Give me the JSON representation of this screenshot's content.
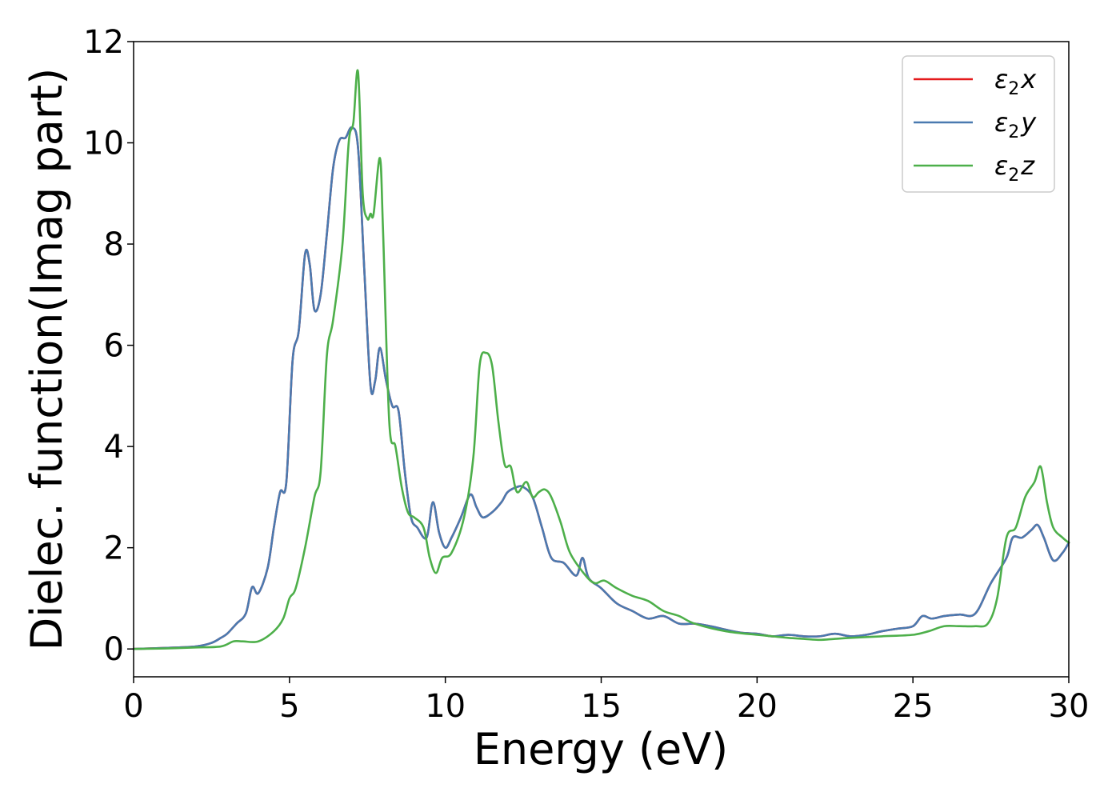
{
  "chart_data": {
    "type": "line",
    "xlabel": "Energy (eV)",
    "ylabel": "Dielec. function(Imag part)",
    "xlim": [
      0,
      30
    ],
    "ylim": [
      -0.55,
      12
    ],
    "xticks": [
      0,
      5,
      10,
      15,
      20,
      25,
      30
    ],
    "xtick_labels": [
      "0",
      "5",
      "10",
      "15",
      "20",
      "25",
      "30"
    ],
    "yticks": [
      0,
      2,
      4,
      6,
      8,
      10,
      12
    ],
    "ytick_labels": [
      "0",
      "2",
      "4",
      "6",
      "8",
      "10",
      "12"
    ],
    "grid": false,
    "legend_position": "top-right",
    "series": [
      {
        "name": "ε2x",
        "legend_base": "ε",
        "legend_sub": "2",
        "legend_var": "x",
        "color": "#e41a1c",
        "x": [
          0,
          1,
          2,
          2.5,
          2.8,
          3,
          3.3,
          3.6,
          3.8,
          4.0,
          4.3,
          4.5,
          4.7,
          4.9,
          5.1,
          5.3,
          5.5,
          5.65,
          5.8,
          6.0,
          6.2,
          6.4,
          6.6,
          6.8,
          7.0,
          7.2,
          7.4,
          7.6,
          7.75,
          7.9,
          8.1,
          8.3,
          8.5,
          8.7,
          8.9,
          9.1,
          9.4,
          9.6,
          9.8,
          10.0,
          10.2,
          10.5,
          10.8,
          11.0,
          11.2,
          11.5,
          11.8,
          12.0,
          12.3,
          12.5,
          12.8,
          13.1,
          13.4,
          13.8,
          14.2,
          14.4,
          14.6,
          15.0,
          15.5,
          16,
          16.5,
          17,
          17.5,
          18,
          18.5,
          19,
          19.5,
          20,
          20.5,
          21,
          21.5,
          22,
          22.5,
          23,
          23.5,
          24,
          24.5,
          25,
          25.3,
          25.6,
          26,
          26.5,
          27,
          27.5,
          28,
          28.2,
          28.5,
          28.8,
          29.0,
          29.2,
          29.5,
          29.8,
          30
        ],
        "values": [
          0,
          0.02,
          0.05,
          0.12,
          0.22,
          0.3,
          0.5,
          0.7,
          1.22,
          1.1,
          1.6,
          2.4,
          3.1,
          3.3,
          5.7,
          6.3,
          7.8,
          7.6,
          6.7,
          7.0,
          8.2,
          9.5,
          10.05,
          10.1,
          10.3,
          9.9,
          7.5,
          5.2,
          5.3,
          5.95,
          5.3,
          4.8,
          4.7,
          3.5,
          2.6,
          2.4,
          2.2,
          2.9,
          2.3,
          2.0,
          2.2,
          2.6,
          3.05,
          2.8,
          2.6,
          2.7,
          2.9,
          3.1,
          3.2,
          3.2,
          3.0,
          2.4,
          1.8,
          1.7,
          1.45,
          1.8,
          1.4,
          1.2,
          0.9,
          0.75,
          0.6,
          0.65,
          0.5,
          0.5,
          0.45,
          0.38,
          0.32,
          0.3,
          0.25,
          0.28,
          0.25,
          0.25,
          0.3,
          0.25,
          0.28,
          0.35,
          0.4,
          0.45,
          0.65,
          0.6,
          0.65,
          0.68,
          0.7,
          1.3,
          1.8,
          2.2,
          2.2,
          2.35,
          2.45,
          2.2,
          1.75,
          1.9,
          2.1
        ]
      },
      {
        "name": "ε2y",
        "legend_base": "ε",
        "legend_sub": "2",
        "legend_var": "y",
        "color": "#4a7ab0",
        "x": [
          0,
          1,
          2,
          2.5,
          2.8,
          3,
          3.3,
          3.6,
          3.8,
          4.0,
          4.3,
          4.5,
          4.7,
          4.9,
          5.1,
          5.3,
          5.5,
          5.65,
          5.8,
          6.0,
          6.2,
          6.4,
          6.6,
          6.8,
          7.0,
          7.2,
          7.4,
          7.6,
          7.75,
          7.9,
          8.1,
          8.3,
          8.5,
          8.7,
          8.9,
          9.1,
          9.4,
          9.6,
          9.8,
          10.0,
          10.2,
          10.5,
          10.8,
          11.0,
          11.2,
          11.5,
          11.8,
          12.0,
          12.3,
          12.5,
          12.8,
          13.1,
          13.4,
          13.8,
          14.2,
          14.4,
          14.6,
          15.0,
          15.5,
          16,
          16.5,
          17,
          17.5,
          18,
          18.5,
          19,
          19.5,
          20,
          20.5,
          21,
          21.5,
          22,
          22.5,
          23,
          23.5,
          24,
          24.5,
          25,
          25.3,
          25.6,
          26,
          26.5,
          27,
          27.5,
          28,
          28.2,
          28.5,
          28.8,
          29.0,
          29.2,
          29.5,
          29.8,
          30
        ],
        "values": [
          0,
          0.02,
          0.05,
          0.12,
          0.22,
          0.3,
          0.5,
          0.7,
          1.22,
          1.1,
          1.6,
          2.4,
          3.1,
          3.3,
          5.7,
          6.3,
          7.8,
          7.6,
          6.7,
          7.0,
          8.2,
          9.5,
          10.05,
          10.1,
          10.3,
          9.9,
          7.5,
          5.2,
          5.3,
          5.95,
          5.3,
          4.8,
          4.7,
          3.5,
          2.6,
          2.4,
          2.2,
          2.9,
          2.3,
          2.0,
          2.2,
          2.6,
          3.05,
          2.8,
          2.6,
          2.7,
          2.9,
          3.1,
          3.2,
          3.2,
          3.0,
          2.4,
          1.8,
          1.7,
          1.45,
          1.8,
          1.4,
          1.2,
          0.9,
          0.75,
          0.6,
          0.65,
          0.5,
          0.5,
          0.45,
          0.38,
          0.32,
          0.3,
          0.25,
          0.28,
          0.25,
          0.25,
          0.3,
          0.25,
          0.28,
          0.35,
          0.4,
          0.45,
          0.65,
          0.6,
          0.65,
          0.68,
          0.7,
          1.3,
          1.8,
          2.2,
          2.2,
          2.35,
          2.45,
          2.2,
          1.75,
          1.9,
          2.1
        ]
      },
      {
        "name": "ε2z",
        "legend_base": "ε",
        "legend_sub": "2",
        "legend_var": "z",
        "color": "#4daf4a",
        "x": [
          0,
          1,
          2,
          2.8,
          3.2,
          3.5,
          4.0,
          4.5,
          4.8,
          5.0,
          5.2,
          5.5,
          5.8,
          6.0,
          6.2,
          6.4,
          6.7,
          6.9,
          7.05,
          7.2,
          7.35,
          7.5,
          7.6,
          7.7,
          7.9,
          8.0,
          8.2,
          8.4,
          8.6,
          8.8,
          9.0,
          9.3,
          9.5,
          9.7,
          9.9,
          10.2,
          10.6,
          10.9,
          11.1,
          11.3,
          11.5,
          11.7,
          11.9,
          12.1,
          12.3,
          12.6,
          12.8,
          13.0,
          13.2,
          13.4,
          13.7,
          14.0,
          14.5,
          14.8,
          15.1,
          15.5,
          16,
          16.5,
          17,
          17.5,
          18,
          19,
          20,
          20.5,
          21,
          21.5,
          22,
          22.5,
          23,
          24,
          25,
          25.5,
          26,
          26.5,
          27,
          27.4,
          27.7,
          28.0,
          28.3,
          28.6,
          28.9,
          29.1,
          29.3,
          29.5,
          29.8,
          30
        ],
        "values": [
          0,
          0.01,
          0.03,
          0.05,
          0.15,
          0.15,
          0.15,
          0.35,
          0.6,
          1.0,
          1.2,
          2.0,
          3.0,
          3.5,
          5.8,
          6.5,
          8.0,
          10.0,
          10.4,
          11.4,
          9.0,
          8.5,
          8.6,
          8.6,
          9.7,
          8.3,
          4.5,
          4.0,
          3.2,
          2.7,
          2.6,
          2.4,
          1.8,
          1.5,
          1.8,
          1.9,
          2.6,
          3.8,
          5.6,
          5.85,
          5.6,
          4.5,
          3.65,
          3.6,
          3.1,
          3.3,
          3.0,
          3.1,
          3.15,
          3.0,
          2.5,
          1.9,
          1.45,
          1.3,
          1.35,
          1.2,
          1.05,
          0.95,
          0.75,
          0.65,
          0.5,
          0.35,
          0.28,
          0.25,
          0.22,
          0.2,
          0.18,
          0.2,
          0.22,
          0.25,
          0.28,
          0.35,
          0.45,
          0.45,
          0.45,
          0.5,
          1.0,
          2.2,
          2.4,
          3.0,
          3.3,
          3.6,
          2.9,
          2.4,
          2.2,
          2.1
        ]
      }
    ]
  }
}
